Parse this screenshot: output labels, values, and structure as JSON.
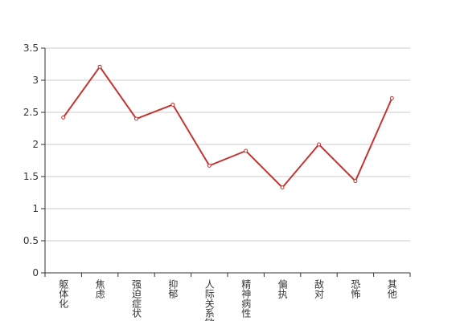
{
  "chart_data": {
    "type": "line",
    "categories": [
      "躯体化",
      "焦虑",
      "强迫症状",
      "抑郁",
      "人际关系敏感",
      "精神病性",
      "偏执",
      "敌对",
      "恐怖",
      "其他"
    ],
    "values": [
      2.42,
      3.21,
      2.4,
      2.62,
      1.67,
      1.9,
      1.33,
      2.0,
      1.43,
      2.72
    ],
    "color": "#c23531",
    "ylim": [
      0,
      3.5
    ],
    "yticks": [
      0,
      0.5,
      1,
      1.5,
      2,
      2.5,
      3,
      3.5
    ],
    "grid": true
  }
}
